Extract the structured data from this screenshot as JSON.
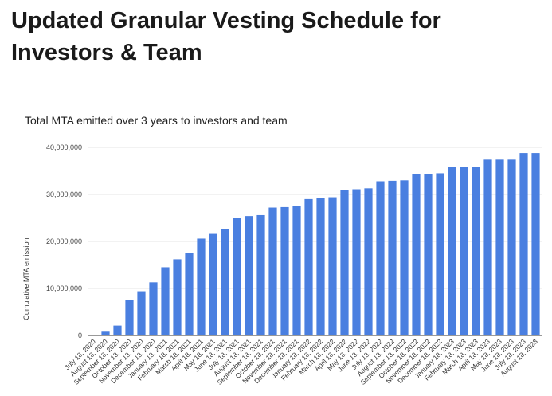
{
  "page": {
    "heading": "Updated Granular Vesting Schedule for Investors & Team"
  },
  "chart_data": {
    "type": "bar",
    "title": "Total MTA emitted over 3 years to investors and team",
    "xlabel": "",
    "ylabel": "Cumulative MTA emission",
    "ylim": [
      0,
      40000000
    ],
    "yticks": [
      "0",
      "10,000,000",
      "20,000,000",
      "30,000,000",
      "40,000,000"
    ],
    "grid": true,
    "bar_color": "#4a7fe0",
    "categories": [
      "July 18, 2020",
      "August 18, 2020",
      "September 18, 2020",
      "October 18, 2020",
      "November 18, 2020",
      "December 18, 2020",
      "January 18, 2021",
      "February 18, 2021",
      "March 18, 2021",
      "April 18, 2021",
      "May 18, 2021",
      "June 18, 2021",
      "July 18, 2021",
      "August 18, 2021",
      "September 18, 2021",
      "October 18, 2021",
      "November 18, 2021",
      "December 18, 2021",
      "January 18, 2022",
      "February 18, 2022",
      "March 18, 2022",
      "April 18, 2022",
      "May 18, 2022",
      "June 18, 2022",
      "July 18, 2022",
      "August 18, 2022",
      "September 18, 2022",
      "October 18, 2022",
      "November 18, 2022",
      "December 18, 2022",
      "January 18, 2023",
      "February 18, 2023",
      "March 18, 2023",
      "April 18, 2023",
      "May 18, 2023",
      "June 18, 2023",
      "July 18, 2023",
      "August 18, 2023"
    ],
    "values": [
      0,
      800000,
      2100000,
      7600000,
      9400000,
      11300000,
      14500000,
      16200000,
      17600000,
      20600000,
      21600000,
      22600000,
      25000000,
      25400000,
      25600000,
      27200000,
      27300000,
      27500000,
      29000000,
      29200000,
      29400000,
      30900000,
      31100000,
      31300000,
      32800000,
      32900000,
      33000000,
      34300000,
      34400000,
      34500000,
      35900000,
      35900000,
      35900000,
      37400000,
      37400000,
      37400000,
      38800000,
      38800000
    ]
  }
}
